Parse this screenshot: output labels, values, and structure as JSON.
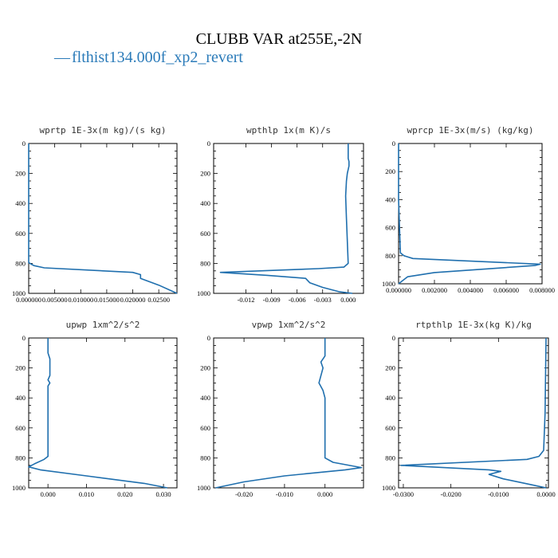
{
  "header": {
    "title": "CLUBB VAR at255E,-2N",
    "legend_marker": "—",
    "legend_label": "flthist134.000f_xp2_revert"
  },
  "colors": {
    "series": "#1f6fae",
    "legend": "#2b7bb9"
  },
  "chart_data": [
    {
      "type": "line",
      "title": "wprtp  1E-3x(m kg)/(s kg)",
      "series": [
        {
          "name": "flthist134.000f_xp2_revert",
          "x": [
            0,
            0,
            0,
            0.001,
            0.003,
            0.02,
            0.0215,
            0.0215,
            0.025,
            0.0285
          ],
          "y": [
            0,
            400,
            795,
            815,
            830,
            860,
            875,
            900,
            945,
            1000
          ]
        }
      ],
      "xlim": [
        0,
        0.0285
      ],
      "ylim": [
        0,
        1000
      ],
      "xticks": [
        0,
        0.005,
        0.01,
        0.015,
        0.02,
        0.025
      ],
      "xtick_labels": [
        "0.000000",
        "0.005000",
        "0.010000",
        "0.015000",
        "0.020000",
        "0.02500"
      ],
      "yticks": [
        0,
        200,
        400,
        600,
        800,
        1000
      ],
      "ytick_labels": [
        "0",
        "200",
        "400",
        "600",
        "800",
        "1000"
      ]
    },
    {
      "type": "line",
      "title": "wpthlp  1x(m K)/s",
      "series": [
        {
          "name": "flthist134.000f_xp2_revert",
          "x": [
            0,
            0,
            0.0001,
            0.0001,
            -0.0001,
            -0.0002,
            -0.0003,
            -0.0002,
            0,
            -0.0005,
            -0.0035,
            -0.015,
            -0.0095,
            -0.005,
            -0.0045,
            -0.003,
            -0.001,
            0.0005
          ],
          "y": [
            0,
            100,
            120,
            150,
            200,
            250,
            350,
            500,
            800,
            825,
            835,
            860,
            880,
            900,
            930,
            960,
            990,
            1000
          ]
        }
      ],
      "xlim": [
        -0.0158,
        0.0018
      ],
      "ylim": [
        0,
        1000
      ],
      "xticks": [
        -0.012,
        -0.009,
        -0.006,
        -0.003,
        0
      ],
      "xtick_labels": [
        "-0.012",
        "-0.009",
        "-0.006",
        "-0.003",
        "0.000"
      ],
      "yticks": [
        0,
        200,
        400,
        600,
        800,
        1000
      ],
      "ytick_labels": [
        "0",
        "200",
        "400",
        "600",
        "800",
        "1000"
      ]
    },
    {
      "type": "line",
      "title": "wprcp  1E-3x(m/s) (kg/kg)",
      "series": [
        {
          "name": "flthist134.000f_xp2_revert",
          "x": [
            0,
            0,
            0.0001,
            0.0003,
            0.0008,
            0.0079,
            0.0076,
            0.002,
            0.0005,
            0
          ],
          "y": [
            0,
            400,
            780,
            800,
            820,
            860,
            870,
            920,
            950,
            1000
          ]
        }
      ],
      "xlim": [
        0,
        0.008
      ],
      "ylim": [
        0,
        1000
      ],
      "xticks": [
        0,
        0.002,
        0.004,
        0.006,
        0.008
      ],
      "xtick_labels": [
        "0.000000",
        "0.002000",
        "0.004000",
        "0.006000",
        "0.008000"
      ],
      "yticks": [
        0,
        200,
        400,
        600,
        800,
        1000
      ],
      "ytick_labels": [
        "0",
        "200",
        "400",
        "600",
        "800",
        "1000"
      ]
    },
    {
      "type": "line",
      "title": "upwp  1xm^2/s^2",
      "series": [
        {
          "name": "flthist134.000f_xp2_revert",
          "x": [
            0,
            0,
            0.0005,
            0.0005,
            0,
            0.0005,
            0,
            0,
            -0.001,
            -0.0035,
            -0.005,
            -0.002,
            0.01,
            0.025,
            0.031
          ],
          "y": [
            0,
            100,
            140,
            250,
            280,
            300,
            320,
            790,
            810,
            840,
            860,
            880,
            920,
            970,
            1000
          ]
        }
      ],
      "xlim": [
        -0.005,
        0.0335
      ],
      "ylim": [
        0,
        1000
      ],
      "xticks": [
        0,
        0.01,
        0.02,
        0.03
      ],
      "xtick_labels": [
        "0.000",
        "0.010",
        "0.020",
        "0.030"
      ],
      "yticks": [
        0,
        200,
        400,
        600,
        800,
        1000
      ],
      "ytick_labels": [
        "0",
        "200",
        "400",
        "600",
        "800",
        "1000"
      ]
    },
    {
      "type": "line",
      "title": "vpwp  1xm^2/s^2",
      "series": [
        {
          "name": "flthist134.000f_xp2_revert",
          "x": [
            0,
            0,
            -0.001,
            -0.0005,
            -0.0015,
            -0.0005,
            0,
            0,
            0.002,
            0.009,
            0.005,
            -0.01,
            -0.02,
            -0.027
          ],
          "y": [
            0,
            120,
            160,
            200,
            300,
            350,
            400,
            800,
            830,
            865,
            880,
            920,
            960,
            1000
          ]
        }
      ],
      "xlim": [
        -0.0275,
        0.0095
      ],
      "ylim": [
        0,
        1000
      ],
      "xticks": [
        -0.02,
        -0.01,
        0
      ],
      "xtick_labels": [
        "-0.020",
        "-0.010",
        "0.000"
      ],
      "yticks": [
        0,
        200,
        400,
        600,
        800,
        1000
      ],
      "ytick_labels": [
        "0",
        "200",
        "400",
        "600",
        "800",
        "1000"
      ]
    },
    {
      "type": "line",
      "title": "rtpthlp  1E-3x(kg K)/kg",
      "series": [
        {
          "name": "flthist134.000f_xp2_revert",
          "x": [
            0,
            -0.0002,
            -0.0005,
            -0.0015,
            -0.004,
            -0.0305,
            -0.012,
            -0.0095,
            -0.012,
            -0.009,
            -0.003,
            0
          ],
          "y": [
            0,
            500,
            750,
            790,
            810,
            850,
            880,
            890,
            910,
            940,
            980,
            1000
          ]
        }
      ],
      "xlim": [
        -0.031,
        0.0005
      ],
      "ylim": [
        0,
        1000
      ],
      "xticks": [
        -0.03,
        -0.02,
        -0.01,
        0
      ],
      "xtick_labels": [
        "-0.0300",
        "-0.0200",
        "-0.0100",
        "0.0000"
      ],
      "yticks": [
        0,
        200,
        400,
        600,
        800,
        1000
      ],
      "ytick_labels": [
        "0",
        "200",
        "400",
        "600",
        "800",
        "1000"
      ]
    }
  ]
}
